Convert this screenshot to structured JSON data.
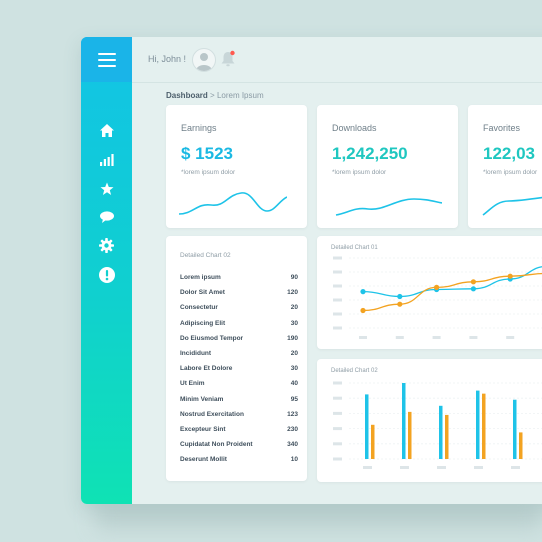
{
  "header": {
    "greeting": "Hi, John !"
  },
  "breadcrumb": {
    "root": "Dashboard",
    "separator": ">",
    "current": "Lorem Ipsum"
  },
  "sidebar": {
    "icons": [
      "home-icon",
      "bar-chart-icon",
      "star-icon",
      "chat-icon",
      "gear-icon",
      "alert-icon"
    ]
  },
  "stats": [
    {
      "title": "Earnings",
      "value": "$ 1523",
      "sub": "*lorem ipsum dolor"
    },
    {
      "title": "Downloads",
      "value": "1,242,250",
      "sub": "*lorem ipsum dolor"
    },
    {
      "title": "Favorites",
      "value": "122,03",
      "sub": "*lorem ipsum dolor"
    }
  ],
  "list_card": {
    "title": "Detailed Chart 02",
    "rows": [
      {
        "label": "Lorem ipsum",
        "value": "90"
      },
      {
        "label": "Dolor Sit Amet",
        "value": "120"
      },
      {
        "label": "Consectetur",
        "value": "20"
      },
      {
        "label": "Adipiscing Elit",
        "value": "30"
      },
      {
        "label": "Do Eiusmod Tempor",
        "value": "190"
      },
      {
        "label": "Incididunt",
        "value": "20"
      },
      {
        "label": "Labore Et Dolore",
        "value": "30"
      },
      {
        "label": "Ut Enim",
        "value": "40"
      },
      {
        "label": "Minim Veniam",
        "value": "95"
      },
      {
        "label": "Nostrud Exercitation",
        "value": "123"
      },
      {
        "label": "Excepteur Sint",
        "value": "230"
      },
      {
        "label": "Cupidatat Non Proident",
        "value": "340"
      },
      {
        "label": "Deserunt Mollit",
        "value": "10"
      }
    ]
  },
  "line_chart": {
    "title": "Detailed Chart 01",
    "series": [
      {
        "color": "#1ec3e8",
        "values": [
          52,
          45,
          55,
          56,
          70,
          88
        ]
      },
      {
        "color": "#f3a321",
        "values": [
          25,
          34,
          58,
          66,
          74,
          78
        ]
      }
    ],
    "ylim": [
      0,
      100
    ]
  },
  "bar_chart": {
    "title": "Detailed Chart 02",
    "series": [
      {
        "color": "#1ec3e8",
        "values": [
          85,
          100,
          70,
          90,
          78
        ]
      },
      {
        "color": "#f3a321",
        "values": [
          45,
          62,
          58,
          86,
          35
        ]
      }
    ],
    "ylim": [
      0,
      100
    ]
  },
  "colors": {
    "sidebar_top": "#12c3e6",
    "sidebar_bottom": "#0fe2b4",
    "accent_blue": "#1bb9e3",
    "accent_orange": "#f3a321",
    "notification_dot": "#ff5a4f"
  }
}
